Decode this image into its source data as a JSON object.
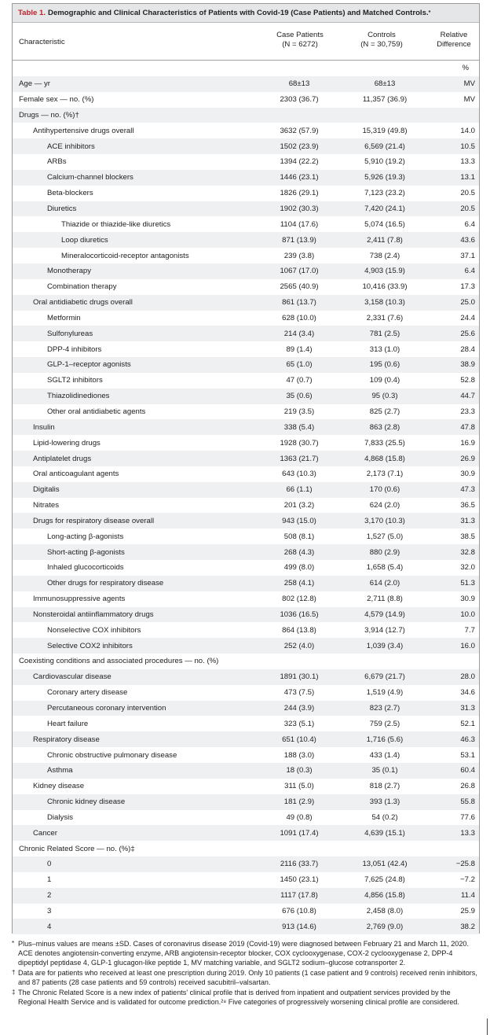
{
  "table": {
    "label": "Table 1.",
    "title": "Demographic and Clinical Characteristics of Patients with Covid-19 (Case Patients) and Matched Controls.",
    "title_mark": "*",
    "header": {
      "characteristic": "Characteristic",
      "case": "Case Patients",
      "case_n": "(N = 6272)",
      "controls": "Controls",
      "controls_n": "(N = 30,759)",
      "rel1": "Relative",
      "rel2": "Difference"
    },
    "rows": [
      {
        "label": "",
        "case": "",
        "ctrl": "",
        "diff": "%",
        "lvl": 0,
        "pct": true
      },
      {
        "label": "Age — yr",
        "case": "68±13",
        "ctrl": "68±13",
        "diff": "MV",
        "lvl": 0
      },
      {
        "label": "Female sex — no. (%)",
        "case": "2303 (36.7)",
        "ctrl": "11,357 (36.9)",
        "diff": "MV",
        "lvl": 0
      },
      {
        "label": "Drugs — no. (%)†",
        "case": "",
        "ctrl": "",
        "diff": "",
        "lvl": 0
      },
      {
        "label": "Antihypertensive drugs overall",
        "case": "3632 (57.9)",
        "ctrl": "15,319 (49.8)",
        "diff": "14.0",
        "lvl": 1
      },
      {
        "label": "ACE inhibitors",
        "case": "1502 (23.9)",
        "ctrl": "6,569 (21.4)",
        "diff": "10.5",
        "lvl": 2
      },
      {
        "label": "ARBs",
        "case": "1394 (22.2)",
        "ctrl": "5,910 (19.2)",
        "diff": "13.3",
        "lvl": 2
      },
      {
        "label": "Calcium-channel blockers",
        "case": "1446 (23.1)",
        "ctrl": "5,926 (19.3)",
        "diff": "13.1",
        "lvl": 2
      },
      {
        "label": "Beta-blockers",
        "case": "1826 (29.1)",
        "ctrl": "7,123 (23.2)",
        "diff": "20.5",
        "lvl": 2
      },
      {
        "label": "Diuretics",
        "case": "1902 (30.3)",
        "ctrl": "7,420 (24.1)",
        "diff": "20.5",
        "lvl": 2
      },
      {
        "label": "Thiazide or thiazide-like diuretics",
        "case": "1104 (17.6)",
        "ctrl": "5,074 (16.5)",
        "diff": "6.4",
        "lvl": 3
      },
      {
        "label": "Loop diuretics",
        "case": "871 (13.9)",
        "ctrl": "2,411 (7.8)",
        "diff": "43.6",
        "lvl": 3
      },
      {
        "label": "Mineralocorticoid-receptor antagonists",
        "case": "239 (3.8)",
        "ctrl": "738 (2.4)",
        "diff": "37.1",
        "lvl": 3
      },
      {
        "label": "Monotherapy",
        "case": "1067 (17.0)",
        "ctrl": "4,903 (15.9)",
        "diff": "6.4",
        "lvl": 2
      },
      {
        "label": "Combination therapy",
        "case": "2565 (40.9)",
        "ctrl": "10,416 (33.9)",
        "diff": "17.3",
        "lvl": 2
      },
      {
        "label": "Oral antidiabetic drugs overall",
        "case": "861 (13.7)",
        "ctrl": "3,158 (10.3)",
        "diff": "25.0",
        "lvl": 1
      },
      {
        "label": "Metformin",
        "case": "628 (10.0)",
        "ctrl": "2,331 (7.6)",
        "diff": "24.4",
        "lvl": 2
      },
      {
        "label": "Sulfonylureas",
        "case": "214 (3.4)",
        "ctrl": "781 (2.5)",
        "diff": "25.6",
        "lvl": 2
      },
      {
        "label": "DPP-4 inhibitors",
        "case": "89 (1.4)",
        "ctrl": "313 (1.0)",
        "diff": "28.4",
        "lvl": 2
      },
      {
        "label": "GLP-1–receptor agonists",
        "case": "65 (1.0)",
        "ctrl": "195 (0.6)",
        "diff": "38.9",
        "lvl": 2
      },
      {
        "label": "SGLT2 inhibitors",
        "case": "47 (0.7)",
        "ctrl": "109 (0.4)",
        "diff": "52.8",
        "lvl": 2
      },
      {
        "label": "Thiazolidinediones",
        "case": "35 (0.6)",
        "ctrl": "95 (0.3)",
        "diff": "44.7",
        "lvl": 2
      },
      {
        "label": "Other oral antidiabetic agents",
        "case": "219 (3.5)",
        "ctrl": "825 (2.7)",
        "diff": "23.3",
        "lvl": 2
      },
      {
        "label": "Insulin",
        "case": "338 (5.4)",
        "ctrl": "863 (2.8)",
        "diff": "47.8",
        "lvl": 1
      },
      {
        "label": "Lipid-lowering drugs",
        "case": "1928 (30.7)",
        "ctrl": "7,833 (25.5)",
        "diff": "16.9",
        "lvl": 1
      },
      {
        "label": "Antiplatelet drugs",
        "case": "1363 (21.7)",
        "ctrl": "4,868 (15.8)",
        "diff": "26.9",
        "lvl": 1
      },
      {
        "label": "Oral anticoagulant agents",
        "case": "643 (10.3)",
        "ctrl": "2,173 (7.1)",
        "diff": "30.9",
        "lvl": 1
      },
      {
        "label": "Digitalis",
        "case": "66 (1.1)",
        "ctrl": "170 (0.6)",
        "diff": "47.3",
        "lvl": 1
      },
      {
        "label": "Nitrates",
        "case": "201 (3.2)",
        "ctrl": "624 (2.0)",
        "diff": "36.5",
        "lvl": 1
      },
      {
        "label": "Drugs for respiratory disease overall",
        "case": "943 (15.0)",
        "ctrl": "3,170 (10.3)",
        "diff": "31.3",
        "lvl": 1
      },
      {
        "label": "Long-acting β-agonists",
        "case": "508 (8.1)",
        "ctrl": "1,527 (5.0)",
        "diff": "38.5",
        "lvl": 2
      },
      {
        "label": "Short-acting β-agonists",
        "case": "268 (4.3)",
        "ctrl": "880 (2.9)",
        "diff": "32.8",
        "lvl": 2
      },
      {
        "label": "Inhaled glucocorticoids",
        "case": "499 (8.0)",
        "ctrl": "1,658 (5.4)",
        "diff": "32.0",
        "lvl": 2
      },
      {
        "label": "Other drugs for respiratory disease",
        "case": "258 (4.1)",
        "ctrl": "614 (2.0)",
        "diff": "51.3",
        "lvl": 2
      },
      {
        "label": "Immunosuppressive agents",
        "case": "802 (12.8)",
        "ctrl": "2,711 (8.8)",
        "diff": "30.9",
        "lvl": 1
      },
      {
        "label": "Nonsteroidal antiinflammatory drugs",
        "case": "1036 (16.5)",
        "ctrl": "4,579 (14.9)",
        "diff": "10.0",
        "lvl": 1
      },
      {
        "label": "Nonselective COX inhibitors",
        "case": "864 (13.8)",
        "ctrl": "3,914 (12.7)",
        "diff": "7.7",
        "lvl": 2
      },
      {
        "label": "Selective COX2 inhibitors",
        "case": "252 (4.0)",
        "ctrl": "1,039 (3.4)",
        "diff": "16.0",
        "lvl": 2
      },
      {
        "label": "Coexisting conditions and associated procedures — no. (%)",
        "case": "",
        "ctrl": "",
        "diff": "",
        "lvl": 0
      },
      {
        "label": "Cardiovascular disease",
        "case": "1891 (30.1)",
        "ctrl": "6,679 (21.7)",
        "diff": "28.0",
        "lvl": 1
      },
      {
        "label": "Coronary artery disease",
        "case": "473 (7.5)",
        "ctrl": "1,519 (4.9)",
        "diff": "34.6",
        "lvl": 2
      },
      {
        "label": "Percutaneous coronary intervention",
        "case": "244 (3.9)",
        "ctrl": "823 (2.7)",
        "diff": "31.3",
        "lvl": 2
      },
      {
        "label": "Heart failure",
        "case": "323 (5.1)",
        "ctrl": "759 (2.5)",
        "diff": "52.1",
        "lvl": 2
      },
      {
        "label": "Respiratory disease",
        "case": "651 (10.4)",
        "ctrl": "1,716 (5.6)",
        "diff": "46.3",
        "lvl": 1
      },
      {
        "label": "Chronic obstructive pulmonary disease",
        "case": "188 (3.0)",
        "ctrl": "433 (1.4)",
        "diff": "53.1",
        "lvl": 2
      },
      {
        "label": "Asthma",
        "case": "18 (0.3)",
        "ctrl": "35 (0.1)",
        "diff": "60.4",
        "lvl": 2
      },
      {
        "label": "Kidney disease",
        "case": "311 (5.0)",
        "ctrl": "818 (2.7)",
        "diff": "26.8",
        "lvl": 1
      },
      {
        "label": "Chronic kidney disease",
        "case": "181 (2.9)",
        "ctrl": "393 (1.3)",
        "diff": "55.8",
        "lvl": 2
      },
      {
        "label": "Dialysis",
        "case": "49 (0.8)",
        "ctrl": "54 (0.2)",
        "diff": "77.6",
        "lvl": 2
      },
      {
        "label": "Cancer",
        "case": "1091 (17.4)",
        "ctrl": "4,639 (15.1)",
        "diff": "13.3",
        "lvl": 1
      },
      {
        "label": "Chronic Related Score — no. (%)‡",
        "case": "",
        "ctrl": "",
        "diff": "",
        "lvl": 0
      },
      {
        "label": "0",
        "case": "2116 (33.7)",
        "ctrl": "13,051 (42.4)",
        "diff": "−25.8",
        "lvl": 2
      },
      {
        "label": "1",
        "case": "1450 (23.1)",
        "ctrl": "7,625 (24.8)",
        "diff": "−7.2",
        "lvl": 2
      },
      {
        "label": "2",
        "case": "1117 (17.8)",
        "ctrl": "4,856 (15.8)",
        "diff": "11.4",
        "lvl": 2
      },
      {
        "label": "3",
        "case": "676 (10.8)",
        "ctrl": "2,458 (8.0)",
        "diff": "25.9",
        "lvl": 2
      },
      {
        "label": "4",
        "case": "913 (14.6)",
        "ctrl": "2,769 (9.0)",
        "diff": "38.2",
        "lvl": 2
      }
    ]
  },
  "notes": [
    {
      "sym": "*",
      "text": "Plus–minus values are means ±SD. Cases of coronavirus disease 2019 (Covid-19) were diagnosed between February 21 and March 11, 2020. ACE denotes angiotensin-converting enzyme, ARB angiotensin-receptor blocker, COX cyclooxygenase, COX-2 cyclooxygenase 2, DPP-4 dipeptidyl peptidase 4, GLP-1 glucagon-like peptide 1, MV matching variable, and SGLT2 sodium–glucose cotransporter 2."
    },
    {
      "sym": "†",
      "text": "Data are for patients who received at least one prescription during 2019. Only 10 patients (1 case patient and 9 controls) received renin inhibitors, and 87 patients (28 case patients and 59 controls) received sacubitril–valsartan."
    },
    {
      "sym": "‡",
      "text": "The Chronic Related Score is a new index of patients' clinical profile that is derived from inpatient and outpatient services provided by the Regional Health Service and is validated for outcome prediction.²⁸ Five categories of progressively worsening clinical profile are considered."
    }
  ]
}
